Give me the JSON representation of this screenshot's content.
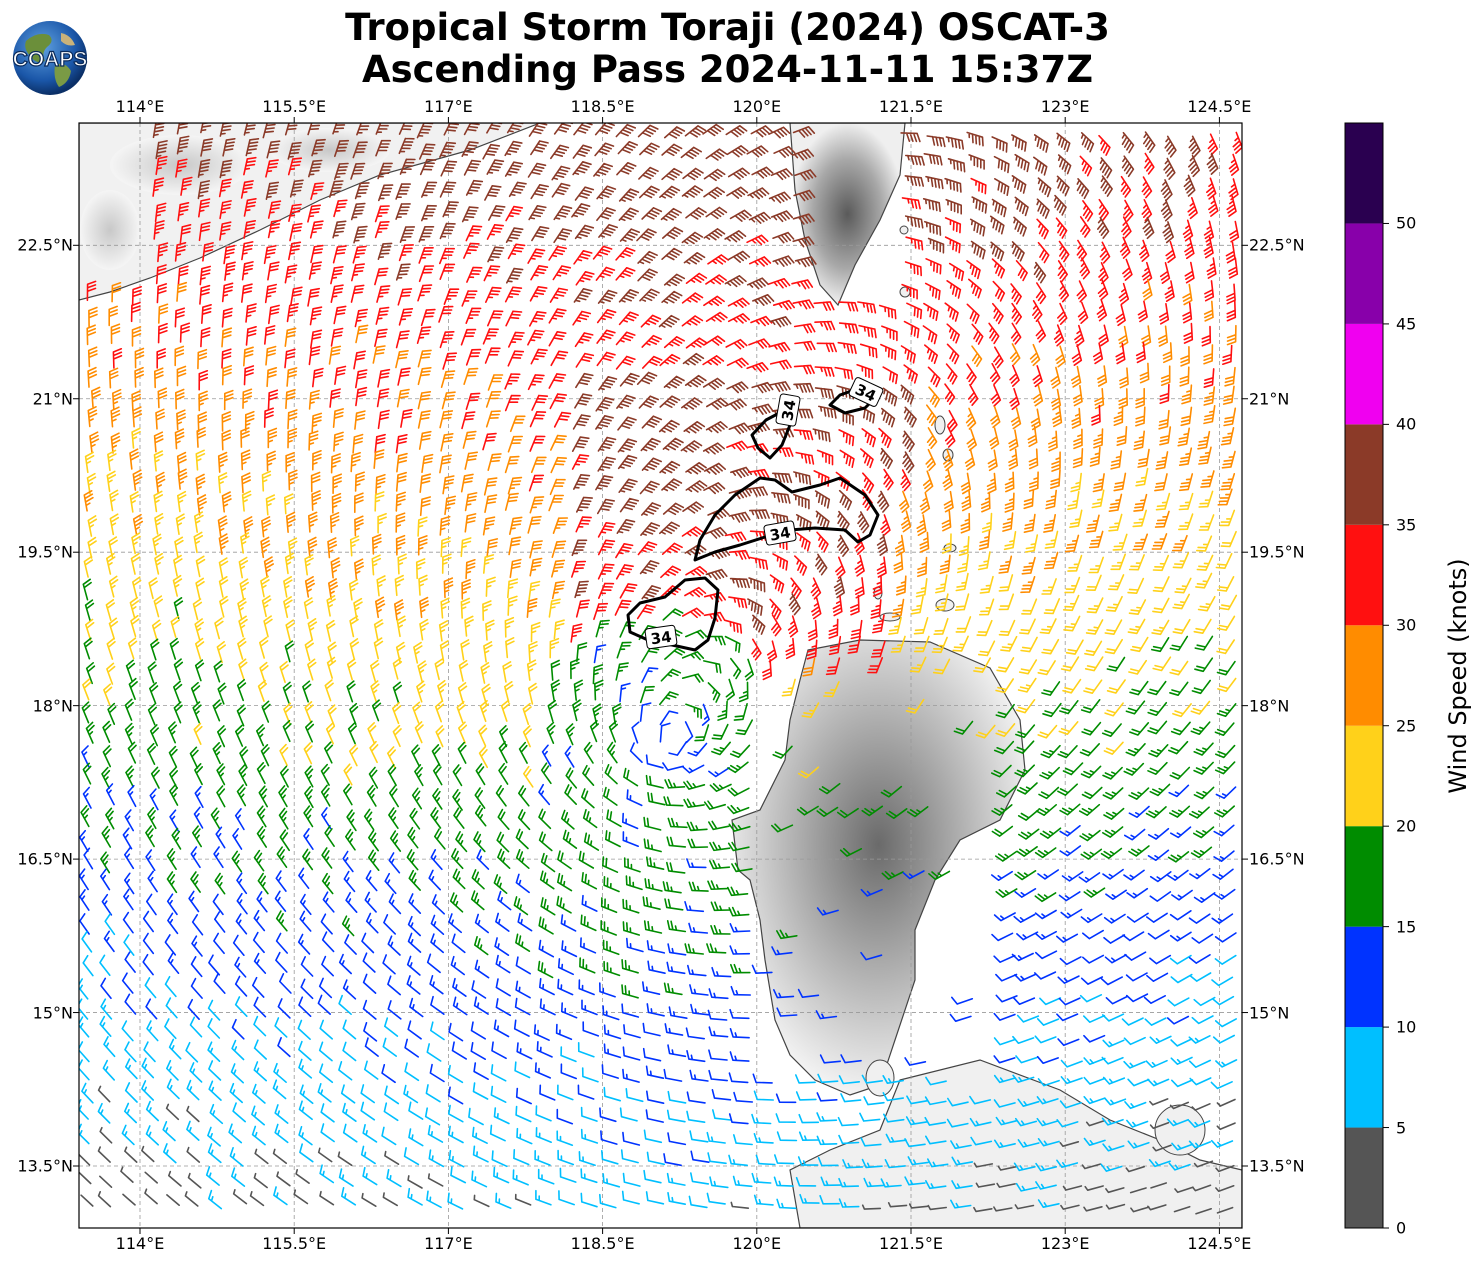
{
  "title": {
    "line1": "Tropical Storm Toraji (2024) OSCAT-3",
    "line2": "Ascending Pass 2024-11-11 15:37Z"
  },
  "logo": {
    "text": "COAPS",
    "icon": "earth-globe-icon"
  },
  "axes": {
    "lon_ticks": [
      "114°E",
      "115.5°E",
      "117°E",
      "118.5°E",
      "120°E",
      "121.5°E",
      "123°E",
      "124.5°E"
    ],
    "lat_ticks": [
      "22.5°N",
      "21°N",
      "19.5°N",
      "18°N",
      "16.5°N",
      "15°N",
      "13.5°N"
    ]
  },
  "colorbar": {
    "label": "Wind Speed (knots)",
    "tick_labels": [
      "0",
      "5",
      "10",
      "15",
      "20",
      "25",
      "30",
      "35",
      "40",
      "45",
      "50"
    ],
    "colors": [
      "#555555",
      "#00bfff",
      "#0033ff",
      "#008c00",
      "#ffd11a",
      "#ff8c00",
      "#ff1010",
      "#8b3a28",
      "#f000f0",
      "#8800aa",
      "#2a0050"
    ]
  },
  "contour_labels": [
    "34",
    "34",
    "34",
    "34"
  ],
  "storm_center": {
    "lon": 119.1,
    "lat": 17.6
  }
}
